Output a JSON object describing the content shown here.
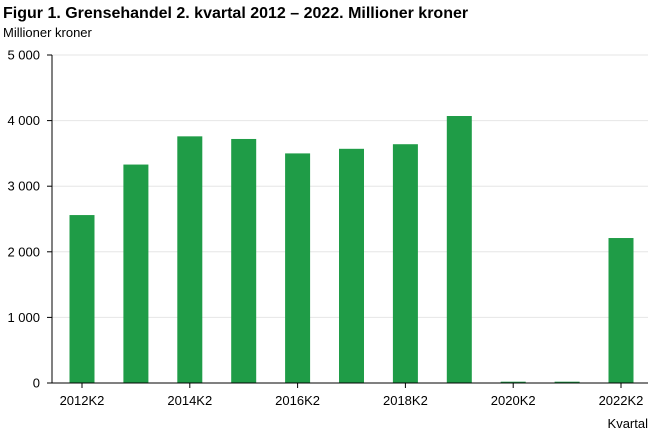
{
  "chart_data": {
    "type": "bar",
    "title": "Figur 1. Grensehandel 2. kvartal 2012 – 2022. Millioner kroner",
    "ylabel": "Millioner kroner",
    "xlabel": "Kvartal",
    "categories": [
      "2012K2",
      "2013K2",
      "2014K2",
      "2015K2",
      "2016K2",
      "2017K2",
      "2018K2",
      "2019K2",
      "2020K2",
      "2021K2",
      "2022K2"
    ],
    "x_tick_labels": [
      "2012K2",
      "2014K2",
      "2016K2",
      "2018K2",
      "2020K2",
      "2022K2"
    ],
    "values": [
      2560,
      3330,
      3760,
      3720,
      3500,
      3570,
      3640,
      4070,
      20,
      20,
      2210
    ],
    "ylim": [
      0,
      5000
    ],
    "y_ticks": [
      0,
      1000,
      2000,
      3000,
      4000,
      5000
    ],
    "y_tick_labels": [
      "0",
      "1 000",
      "2 000",
      "3 000",
      "4 000",
      "5 000"
    ],
    "grid": true,
    "bar_color": "#1f9c47",
    "grid_color": "#e6e6e6"
  }
}
